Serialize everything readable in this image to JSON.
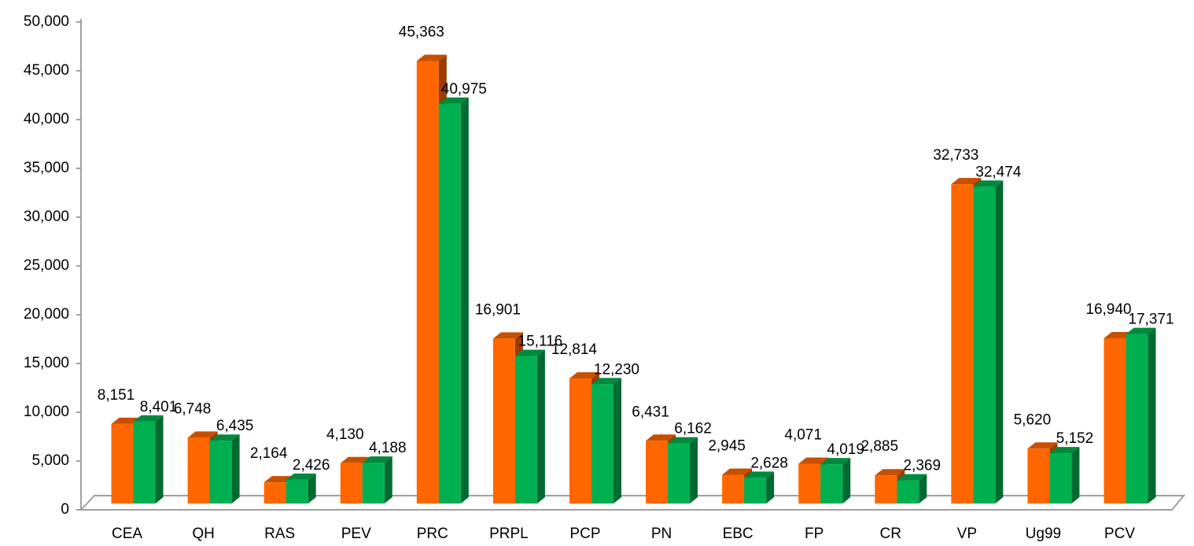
{
  "chart_data": {
    "type": "bar3d",
    "categories": [
      "CEA",
      "QH",
      "RAS",
      "PEV",
      "PRC",
      "PRPL",
      "PCP",
      "PN",
      "EBC",
      "FP",
      "CR",
      "VP",
      "Ug99",
      "PCV"
    ],
    "series": [
      {
        "color": "#ff6600",
        "values": [
          8151,
          6748,
          2164,
          4130,
          45363,
          16901,
          12814,
          6431,
          2945,
          4071,
          2885,
          32733,
          5620,
          16940
        ],
        "value_labels": [
          "8,151",
          "6,748",
          "2,164",
          "4,130",
          "45,363",
          "16,901",
          "12,814",
          "6,431",
          "2,945",
          "4,071",
          "2,885",
          "32,733",
          "5,620",
          "16,940"
        ]
      },
      {
        "color": "#00b050",
        "values": [
          8401,
          6435,
          2426,
          4188,
          40975,
          15116,
          12230,
          6162,
          2628,
          4019,
          2369,
          32474,
          5152,
          17371
        ],
        "value_labels": [
          "8,401",
          "6,435",
          "2,426",
          "4,188",
          "40,975",
          "15,116",
          "12,230",
          "6,162",
          "2,628",
          "4,019",
          "2,369",
          "32,474",
          "5,152",
          "17,371"
        ]
      }
    ],
    "ylim": [
      0,
      50000
    ],
    "yticks": [
      0,
      {
        "value": 5000,
        "label": "5,000"
      },
      {
        "value": 10000,
        "label": "10,000"
      },
      {
        "value": 15000,
        "label": "15,000"
      },
      {
        "value": 20000,
        "label": "20,000"
      },
      {
        "value": 25000,
        "label": "25,000"
      },
      {
        "value": 30000,
        "label": "30,000"
      },
      {
        "value": 35000,
        "label": "35,000"
      },
      {
        "value": 40000,
        "label": "40,000"
      },
      {
        "value": 45000,
        "label": "45,000"
      },
      {
        "value": 50000,
        "label": "50,000"
      }
    ]
  }
}
